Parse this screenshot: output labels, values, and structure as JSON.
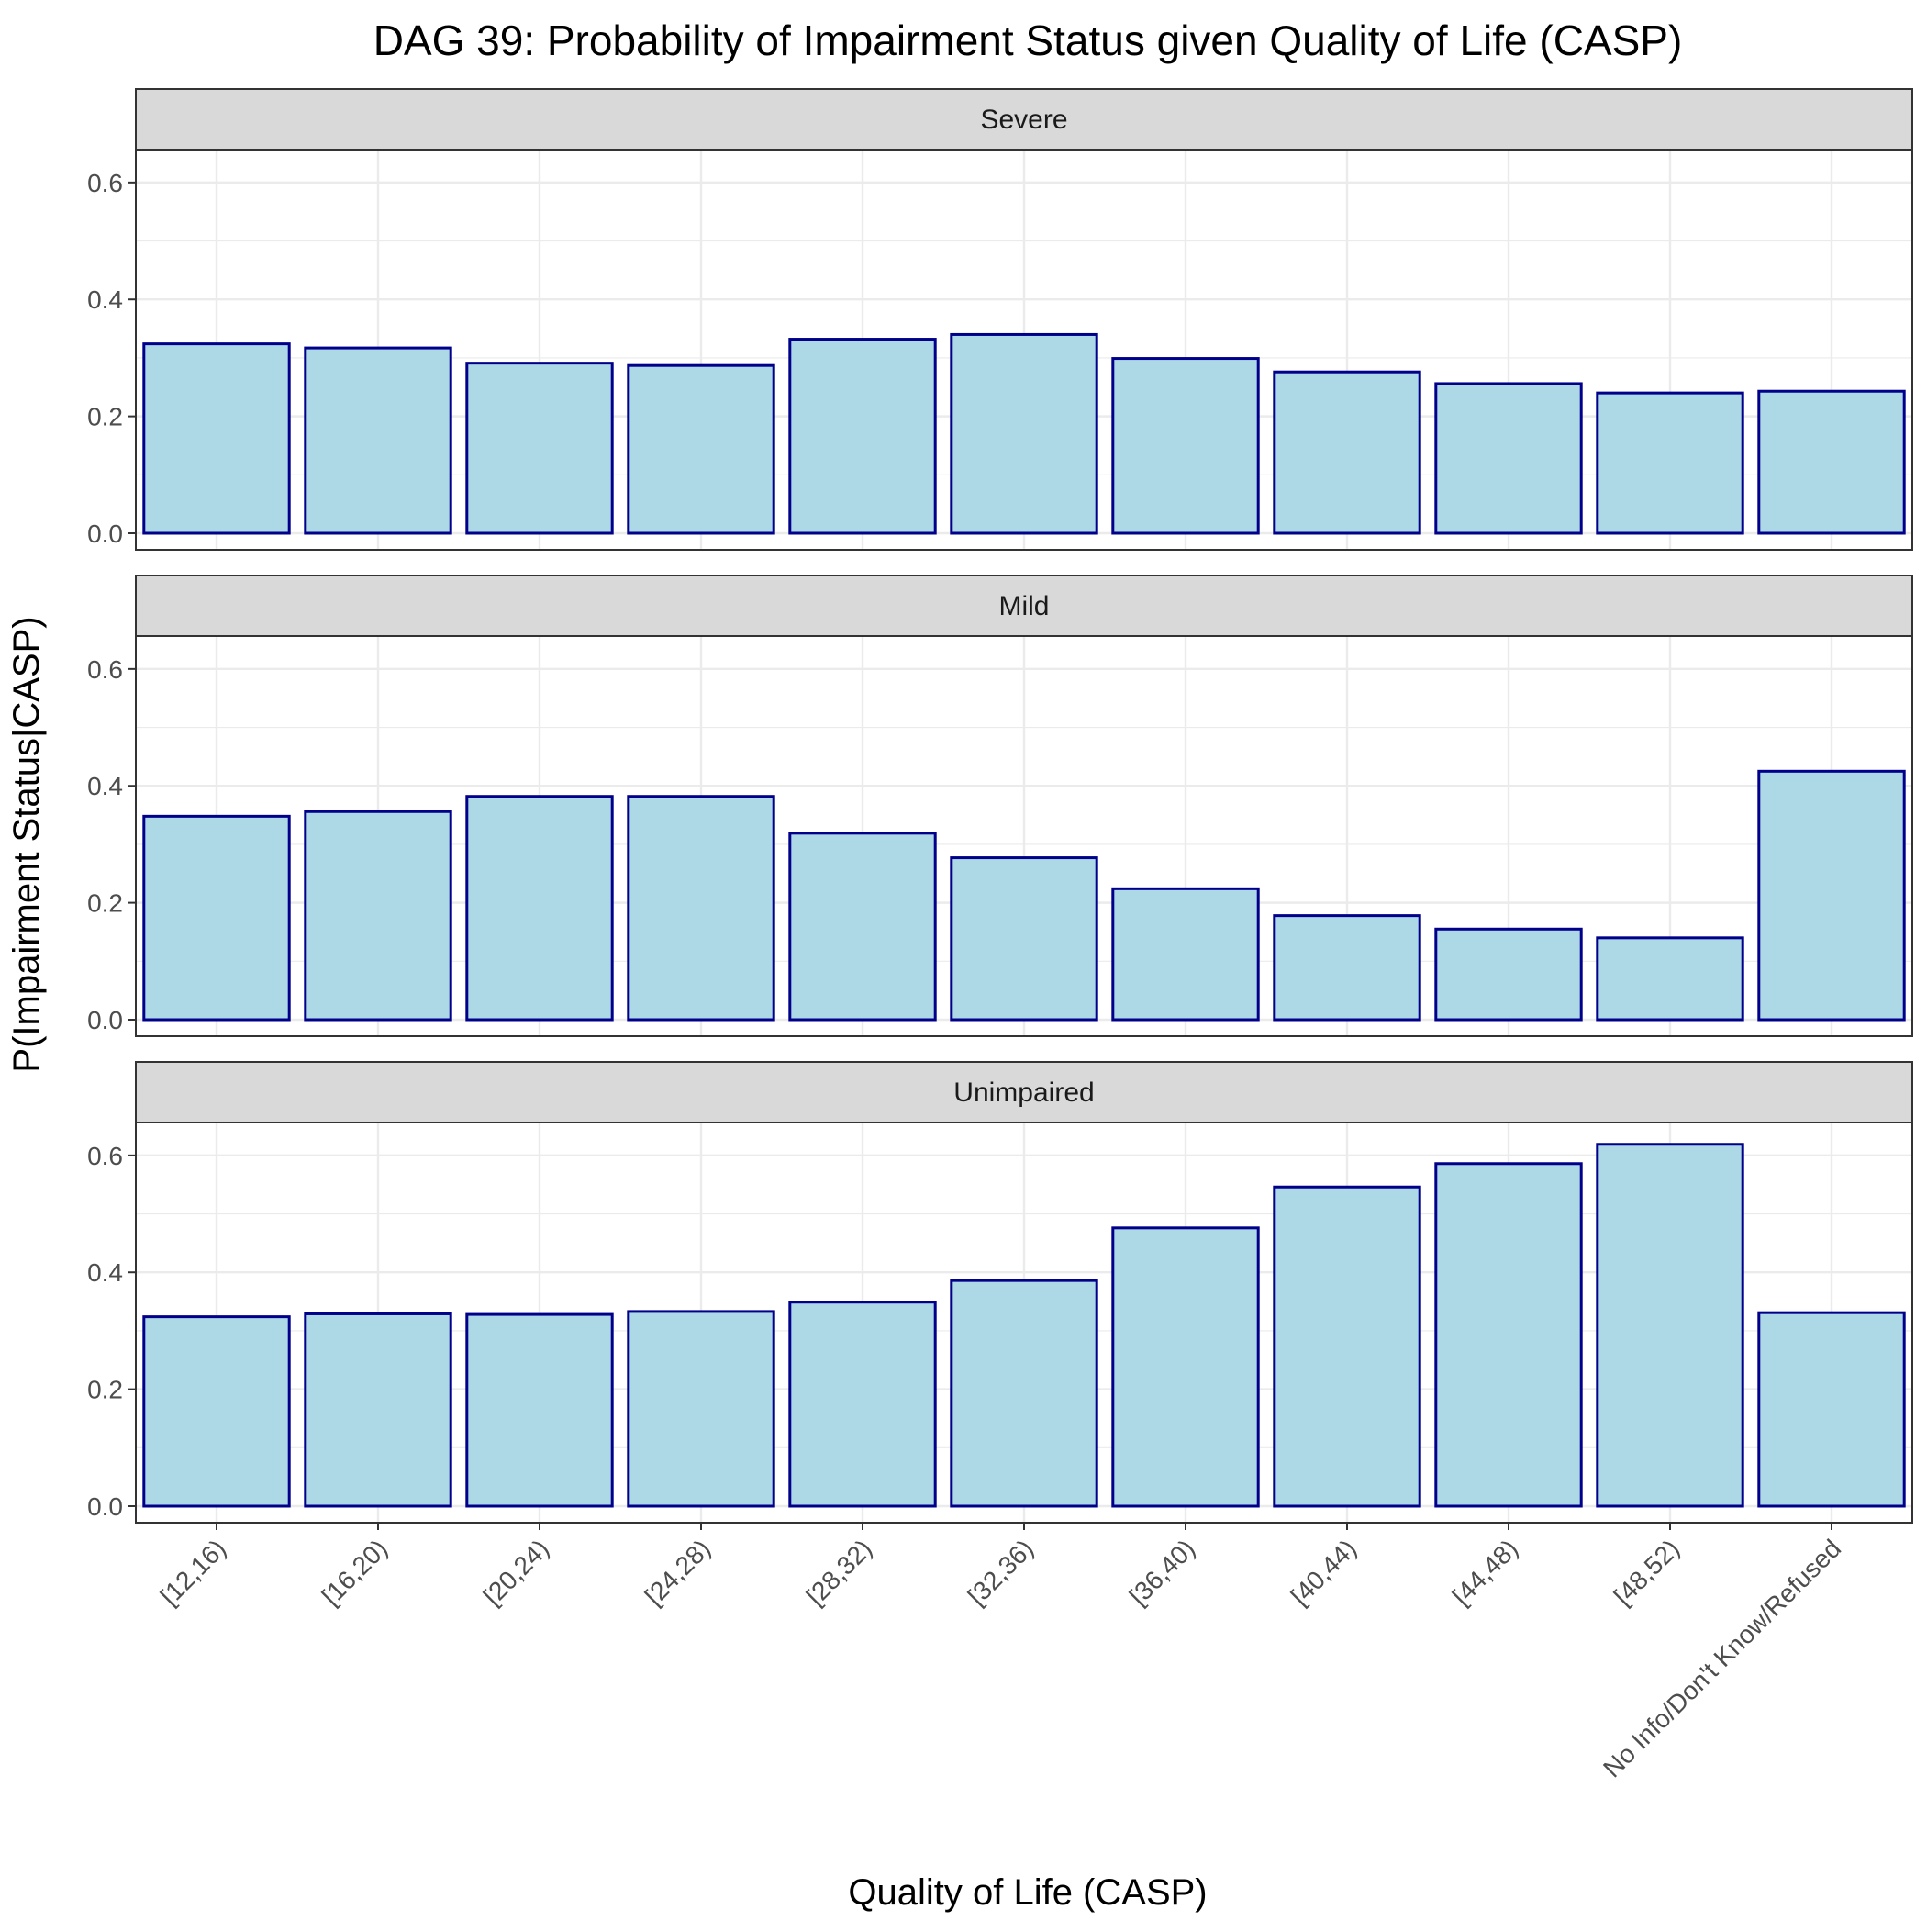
{
  "chart_data": {
    "type": "bar",
    "title": "DAG 39: Probability of Impairment Status given Quality of Life (CASP)",
    "xlabel": "Quality of Life (CASP)",
    "ylabel": "P(Impairment Status|CASP)",
    "categories": [
      "[12,16)",
      "[16,20)",
      "[20,24)",
      "[24,28)",
      "[28,32)",
      "[32,36)",
      "[36,40)",
      "[40,44)",
      "[44,48)",
      "[48,52)",
      "No Info/Don't Know/Refused"
    ],
    "ylim": [
      0,
      0.65
    ],
    "yticks": [
      "0.0",
      "0.2",
      "0.4",
      "0.6"
    ],
    "grid": true,
    "facets": [
      {
        "name": "Severe",
        "values": [
          0.324,
          0.317,
          0.291,
          0.287,
          0.332,
          0.34,
          0.299,
          0.276,
          0.256,
          0.24,
          0.243
        ]
      },
      {
        "name": "Mild",
        "values": [
          0.348,
          0.356,
          0.382,
          0.382,
          0.319,
          0.277,
          0.224,
          0.178,
          0.155,
          0.14,
          0.425
        ]
      },
      {
        "name": "Unimpaired",
        "values": [
          0.324,
          0.329,
          0.328,
          0.333,
          0.349,
          0.386,
          0.476,
          0.546,
          0.586,
          0.619,
          0.331
        ]
      }
    ],
    "colors": {
      "bar_fill": "#ADD8E6",
      "bar_stroke": "#00008B",
      "strip_fill": "#D9D9D9",
      "grid": "#EBEBEB",
      "panel_border": "#333333"
    }
  }
}
